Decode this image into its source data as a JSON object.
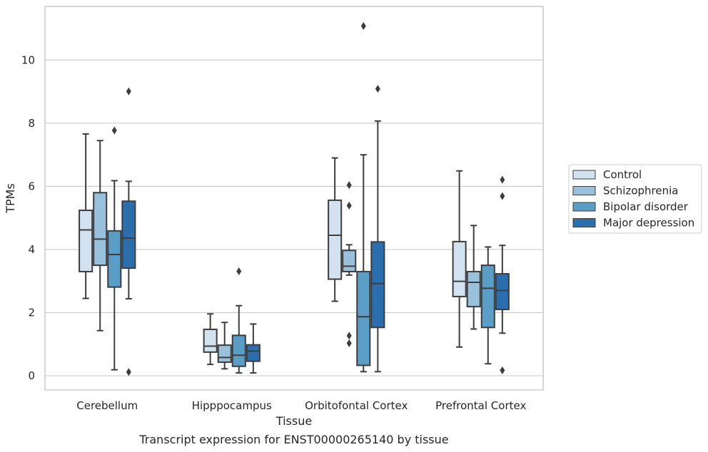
{
  "chart_data": {
    "type": "box",
    "title": "",
    "caption": "Transcript expression for ENST00000265140 by tissue",
    "xlabel": "Tissue",
    "ylabel": "TPMs",
    "ylim": [
      -0.45,
      11.7
    ],
    "yticks": [
      0,
      2,
      4,
      6,
      8,
      10
    ],
    "grid": "horizontal",
    "legend_position": "outside-right",
    "categories": [
      "Cerebellum",
      "Hipppocampus",
      "Orbitofontal Cortex",
      "Prefrontal Cortex"
    ],
    "series": [
      {
        "name": "Control",
        "color": "#d3e2f1",
        "boxes": [
          {
            "whislo": 2.45,
            "q1": 3.3,
            "med": 4.62,
            "q3": 5.24,
            "whishi": 7.66,
            "fliers": []
          },
          {
            "whislo": 0.36,
            "q1": 0.75,
            "med": 0.94,
            "q3": 1.47,
            "whishi": 1.96,
            "fliers": []
          },
          {
            "whislo": 2.36,
            "q1": 3.06,
            "med": 4.45,
            "q3": 5.56,
            "whishi": 6.9,
            "fliers": []
          },
          {
            "whislo": 0.91,
            "q1": 2.51,
            "med": 2.99,
            "q3": 4.25,
            "whishi": 6.49,
            "fliers": []
          }
        ]
      },
      {
        "name": "Schizophrenia",
        "color": "#9ac1dc",
        "boxes": [
          {
            "whislo": 1.43,
            "q1": 3.5,
            "med": 4.33,
            "q3": 5.8,
            "whishi": 7.45,
            "fliers": []
          },
          {
            "whislo": 0.22,
            "q1": 0.43,
            "med": 0.58,
            "q3": 0.97,
            "whishi": 1.69,
            "fliers": []
          },
          {
            "whislo": 3.19,
            "q1": 3.3,
            "med": 3.47,
            "q3": 3.97,
            "whishi": 4.15,
            "fliers": [
              6.04,
              5.39,
              1.27,
              1.03
            ]
          },
          {
            "whislo": 1.48,
            "q1": 2.19,
            "med": 2.96,
            "q3": 3.3,
            "whishi": 4.76,
            "fliers": []
          }
        ]
      },
      {
        "name": "Bipolar disorder",
        "color": "#5a9ec8",
        "boxes": [
          {
            "whislo": 0.19,
            "q1": 2.81,
            "med": 3.84,
            "q3": 4.59,
            "whishi": 6.18,
            "fliers": [
              7.77
            ]
          },
          {
            "whislo": 0.09,
            "q1": 0.3,
            "med": 0.65,
            "q3": 1.28,
            "whishi": 2.22,
            "fliers": [
              3.31
            ]
          },
          {
            "whislo": 0.13,
            "q1": 0.33,
            "med": 1.87,
            "q3": 3.3,
            "whishi": 7.0,
            "fliers": [
              11.08
            ]
          },
          {
            "whislo": 0.38,
            "q1": 1.53,
            "med": 2.77,
            "q3": 3.5,
            "whishi": 4.08,
            "fliers": []
          }
        ]
      },
      {
        "name": "Major depression",
        "color": "#2a6ead",
        "boxes": [
          {
            "whislo": 2.44,
            "q1": 3.41,
            "med": 4.36,
            "q3": 5.53,
            "whishi": 6.16,
            "fliers": [
              9.01,
              0.12
            ]
          },
          {
            "whislo": 0.09,
            "q1": 0.46,
            "med": 0.78,
            "q3": 0.98,
            "whishi": 1.64,
            "fliers": []
          },
          {
            "whislo": 0.13,
            "q1": 1.53,
            "med": 2.92,
            "q3": 4.24,
            "whishi": 8.07,
            "fliers": [
              9.09
            ]
          },
          {
            "whislo": 1.35,
            "q1": 2.1,
            "med": 2.7,
            "q3": 3.23,
            "whishi": 4.13,
            "fliers": [
              6.21,
              5.69,
              0.17
            ]
          }
        ]
      }
    ]
  }
}
